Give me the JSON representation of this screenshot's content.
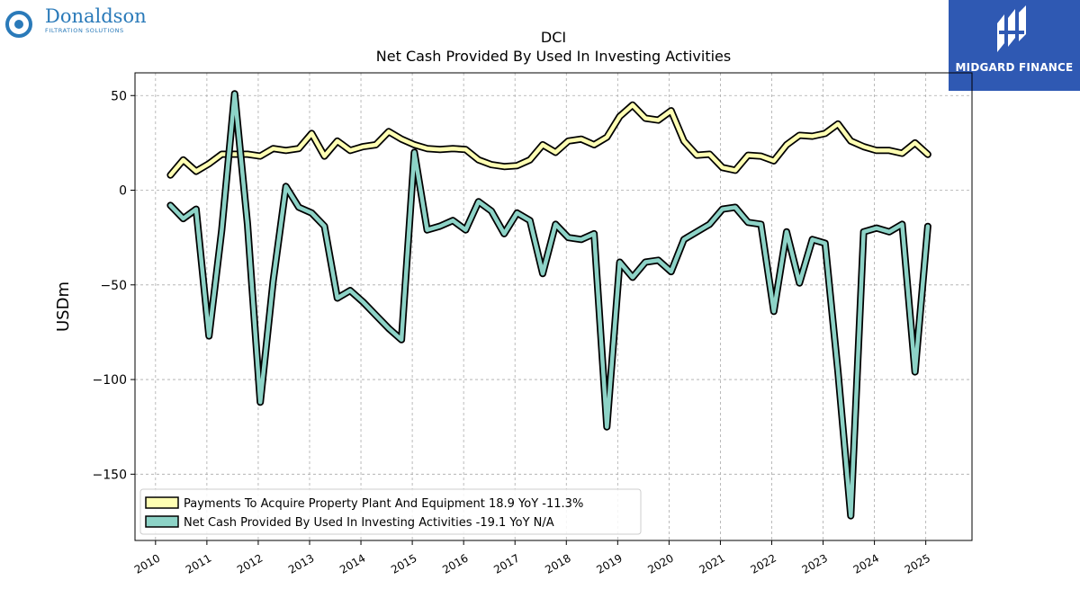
{
  "branding": {
    "left_logo_name": "Donaldson",
    "left_logo_tagline": "FILTRATION SOLUTIONS",
    "left_logo_color": "#2a7ab9",
    "right_logo_name": "MIDGARD FINANCE",
    "right_logo_color": "#2f59b3"
  },
  "chart_data": {
    "type": "line",
    "title": "DCI",
    "subtitle": "Net Cash Provided By Used In Investing Activities",
    "ylabel": "USDm",
    "xlabel": "",
    "ylim": [
      -185,
      62
    ],
    "xlim": [
      2009.6,
      2025.9
    ],
    "yticks": [
      50,
      0,
      -50,
      -100,
      -150
    ],
    "ytick_labels": [
      "50",
      "0",
      "−50",
      "−100",
      "−150"
    ],
    "xticks": [
      2010,
      2011,
      2012,
      2013,
      2014,
      2015,
      2016,
      2017,
      2018,
      2019,
      2020,
      2021,
      2022,
      2023,
      2024,
      2025
    ],
    "xtick_labels": [
      "2010",
      "2011",
      "2012",
      "2013",
      "2014",
      "2015",
      "2016",
      "2017",
      "2018",
      "2019",
      "2020",
      "2021",
      "2022",
      "2023",
      "2024",
      "2025"
    ],
    "grid": true,
    "legend_position": "lower-left",
    "series": [
      {
        "name": "Payments To Acquire Property Plant And Equipment",
        "legend_label": "Payments To Acquire Property Plant And Equipment  18.9 YoY -11.3%",
        "color": "#ffffb3",
        "x": [
          2010.29,
          2010.54,
          2010.79,
          2011.04,
          2011.29,
          2011.54,
          2011.79,
          2012.04,
          2012.29,
          2012.54,
          2012.79,
          2013.04,
          2013.29,
          2013.54,
          2013.79,
          2014.04,
          2014.29,
          2014.54,
          2014.79,
          2015.04,
          2015.29,
          2015.54,
          2015.79,
          2016.04,
          2016.29,
          2016.54,
          2016.79,
          2017.04,
          2017.29,
          2017.54,
          2017.79,
          2018.04,
          2018.29,
          2018.54,
          2018.79,
          2019.04,
          2019.29,
          2019.54,
          2019.79,
          2020.04,
          2020.29,
          2020.54,
          2020.79,
          2021.04,
          2021.29,
          2021.54,
          2021.79,
          2022.04,
          2022.29,
          2022.54,
          2022.79,
          2023.04,
          2023.29,
          2023.54,
          2023.79,
          2024.04,
          2024.29,
          2024.54,
          2024.79,
          2025.04
        ],
        "y": [
          8,
          16,
          10,
          14,
          19,
          19,
          19,
          18,
          22,
          21,
          22,
          30,
          18,
          26,
          21,
          23,
          24,
          31,
          27,
          24,
          22,
          21.5,
          22,
          21.5,
          16,
          13.5,
          12.5,
          13,
          16,
          24,
          20,
          26,
          27,
          24,
          28,
          39,
          45,
          38,
          37,
          42,
          26,
          18.5,
          19,
          12,
          10.5,
          18.5,
          18,
          15.5,
          24,
          29,
          28.5,
          30,
          35,
          26,
          23,
          21,
          21,
          19.5,
          25,
          18.9
        ]
      },
      {
        "name": "Net Cash Provided By Used In Investing Activities",
        "legend_label": "Net Cash Provided By Used In Investing Activities  -19.1 YoY N/A",
        "color": "#8dd3c7",
        "x": [
          2010.29,
          2010.54,
          2010.79,
          2011.04,
          2011.29,
          2011.54,
          2011.79,
          2012.04,
          2012.29,
          2012.54,
          2012.79,
          2013.04,
          2013.29,
          2013.54,
          2013.79,
          2014.04,
          2014.29,
          2014.54,
          2014.79,
          2015.04,
          2015.29,
          2015.54,
          2015.79,
          2016.04,
          2016.29,
          2016.54,
          2016.79,
          2017.04,
          2017.29,
          2017.54,
          2017.79,
          2018.04,
          2018.29,
          2018.54,
          2018.79,
          2019.04,
          2019.29,
          2019.54,
          2019.79,
          2020.04,
          2020.29,
          2020.54,
          2020.79,
          2021.04,
          2021.29,
          2021.54,
          2021.79,
          2022.04,
          2022.29,
          2022.54,
          2022.79,
          2023.04,
          2023.29,
          2023.54,
          2023.79,
          2024.04,
          2024.29,
          2024.54,
          2024.79,
          2025.04
        ],
        "y": [
          -8,
          -15,
          -10,
          -77,
          -21,
          51,
          -18,
          -112,
          -48,
          2,
          -9,
          -12,
          -19,
          -57,
          -53,
          -59,
          -66,
          -73,
          -79,
          20,
          -21,
          -19,
          -16,
          -21,
          -6,
          -11,
          -23,
          -12,
          -16,
          -44,
          -18,
          -25,
          -26,
          -23,
          -125,
          -38,
          -46,
          -38,
          -37,
          -43,
          -26,
          -22,
          -18,
          -10,
          -9,
          -17,
          -18,
          -64,
          -22,
          -49,
          -26,
          -28,
          -96,
          -172,
          -22,
          -20,
          -22,
          -18,
          -96,
          -19.1
        ]
      }
    ]
  }
}
